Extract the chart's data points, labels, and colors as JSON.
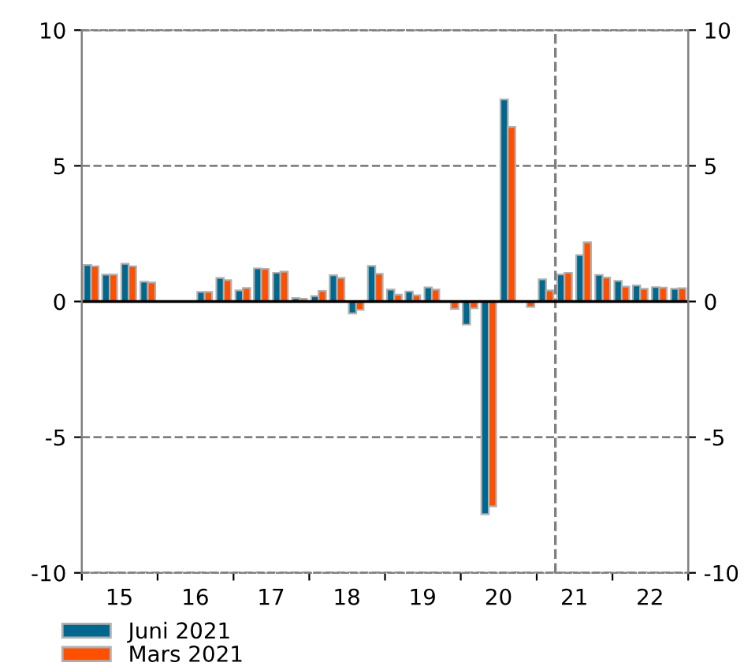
{
  "chart_data": {
    "type": "bar",
    "x": [
      "2015-02-15",
      "2015-05-15",
      "2015-08-15",
      "2015-11-15",
      "2016-02-15",
      "2016-05-15",
      "2016-08-15",
      "2016-11-15",
      "2017-02-15",
      "2017-05-15",
      "2017-08-15",
      "2017-11-15",
      "2018-02-15",
      "2018-05-15",
      "2018-08-15",
      "2018-11-15",
      "2019-02-15",
      "2019-05-15",
      "2019-08-15",
      "2019-11-15",
      "2020-02-15",
      "2020-05-15",
      "2020-08-15",
      "2020-11-15",
      "2021-02-15",
      "2021-05-15",
      "2021-08-15",
      "2021-11-15",
      "2022-02-15",
      "2022-05-15",
      "2022-08-15",
      "2022-11-15"
    ],
    "series": [
      {
        "name": "Juni 2021",
        "color": "#00688f",
        "values": [
          1.35,
          0.99,
          1.39,
          0.73,
          null,
          null,
          0.35,
          0.87,
          0.41,
          1.22,
          1.06,
          0.13,
          0.2,
          0.97,
          -0.44,
          1.31,
          0.44,
          0.37,
          0.52,
          null,
          -0.85,
          -7.84,
          7.45,
          null,
          0.82,
          1.0,
          1.71,
          0.98,
          0.76,
          0.59,
          0.53,
          0.47
        ]
      },
      {
        "name": "Mars 2021",
        "color": "#ff4f00",
        "values": [
          1.3,
          0.99,
          1.3,
          0.7,
          null,
          null,
          0.35,
          0.79,
          0.5,
          1.2,
          1.1,
          0.1,
          0.39,
          0.87,
          -0.31,
          1.02,
          0.25,
          0.23,
          0.44,
          -0.27,
          -0.25,
          -7.55,
          6.43,
          -0.2,
          0.41,
          1.06,
          2.18,
          0.88,
          0.55,
          0.47,
          0.51,
          0.49
        ]
      }
    ],
    "xlim": [
      "2015-01-01",
      "2023-01-01"
    ],
    "xticks": [
      {
        "value": "2015-01-01",
        "label": null
      },
      {
        "value": "2015-07-01",
        "label": "15"
      },
      {
        "value": "2016-01-01",
        "label": null
      },
      {
        "value": "2016-07-01",
        "label": "16"
      },
      {
        "value": "2017-01-01",
        "label": null
      },
      {
        "value": "2017-07-01",
        "label": "17"
      },
      {
        "value": "2018-01-01",
        "label": null
      },
      {
        "value": "2018-07-01",
        "label": "18"
      },
      {
        "value": "2019-01-01",
        "label": null
      },
      {
        "value": "2019-07-01",
        "label": "19"
      },
      {
        "value": "2020-01-01",
        "label": null
      },
      {
        "value": "2020-07-01",
        "label": "20"
      },
      {
        "value": "2021-01-01",
        "label": null
      },
      {
        "value": "2021-07-01",
        "label": "21"
      },
      {
        "value": "2022-01-01",
        "label": null
      },
      {
        "value": "2022-07-01",
        "label": "22"
      },
      {
        "value": "2023-01-01",
        "label": null
      }
    ],
    "ylim": [
      -10,
      10
    ],
    "yticks": [
      -10,
      -5,
      0,
      5,
      10
    ],
    "y2lim": [
      -10,
      10
    ],
    "y2ticks": [
      -10,
      -5,
      0,
      5,
      10
    ],
    "ref_lines": [
      {
        "axis": "x",
        "value": "2021-04-01",
        "color": "#808080",
        "line_style": "dashed"
      },
      {
        "axis": "y",
        "value": 0,
        "color": "#000000",
        "line_style": "solid"
      }
    ],
    "grid": "y",
    "legend": "bottom left"
  }
}
